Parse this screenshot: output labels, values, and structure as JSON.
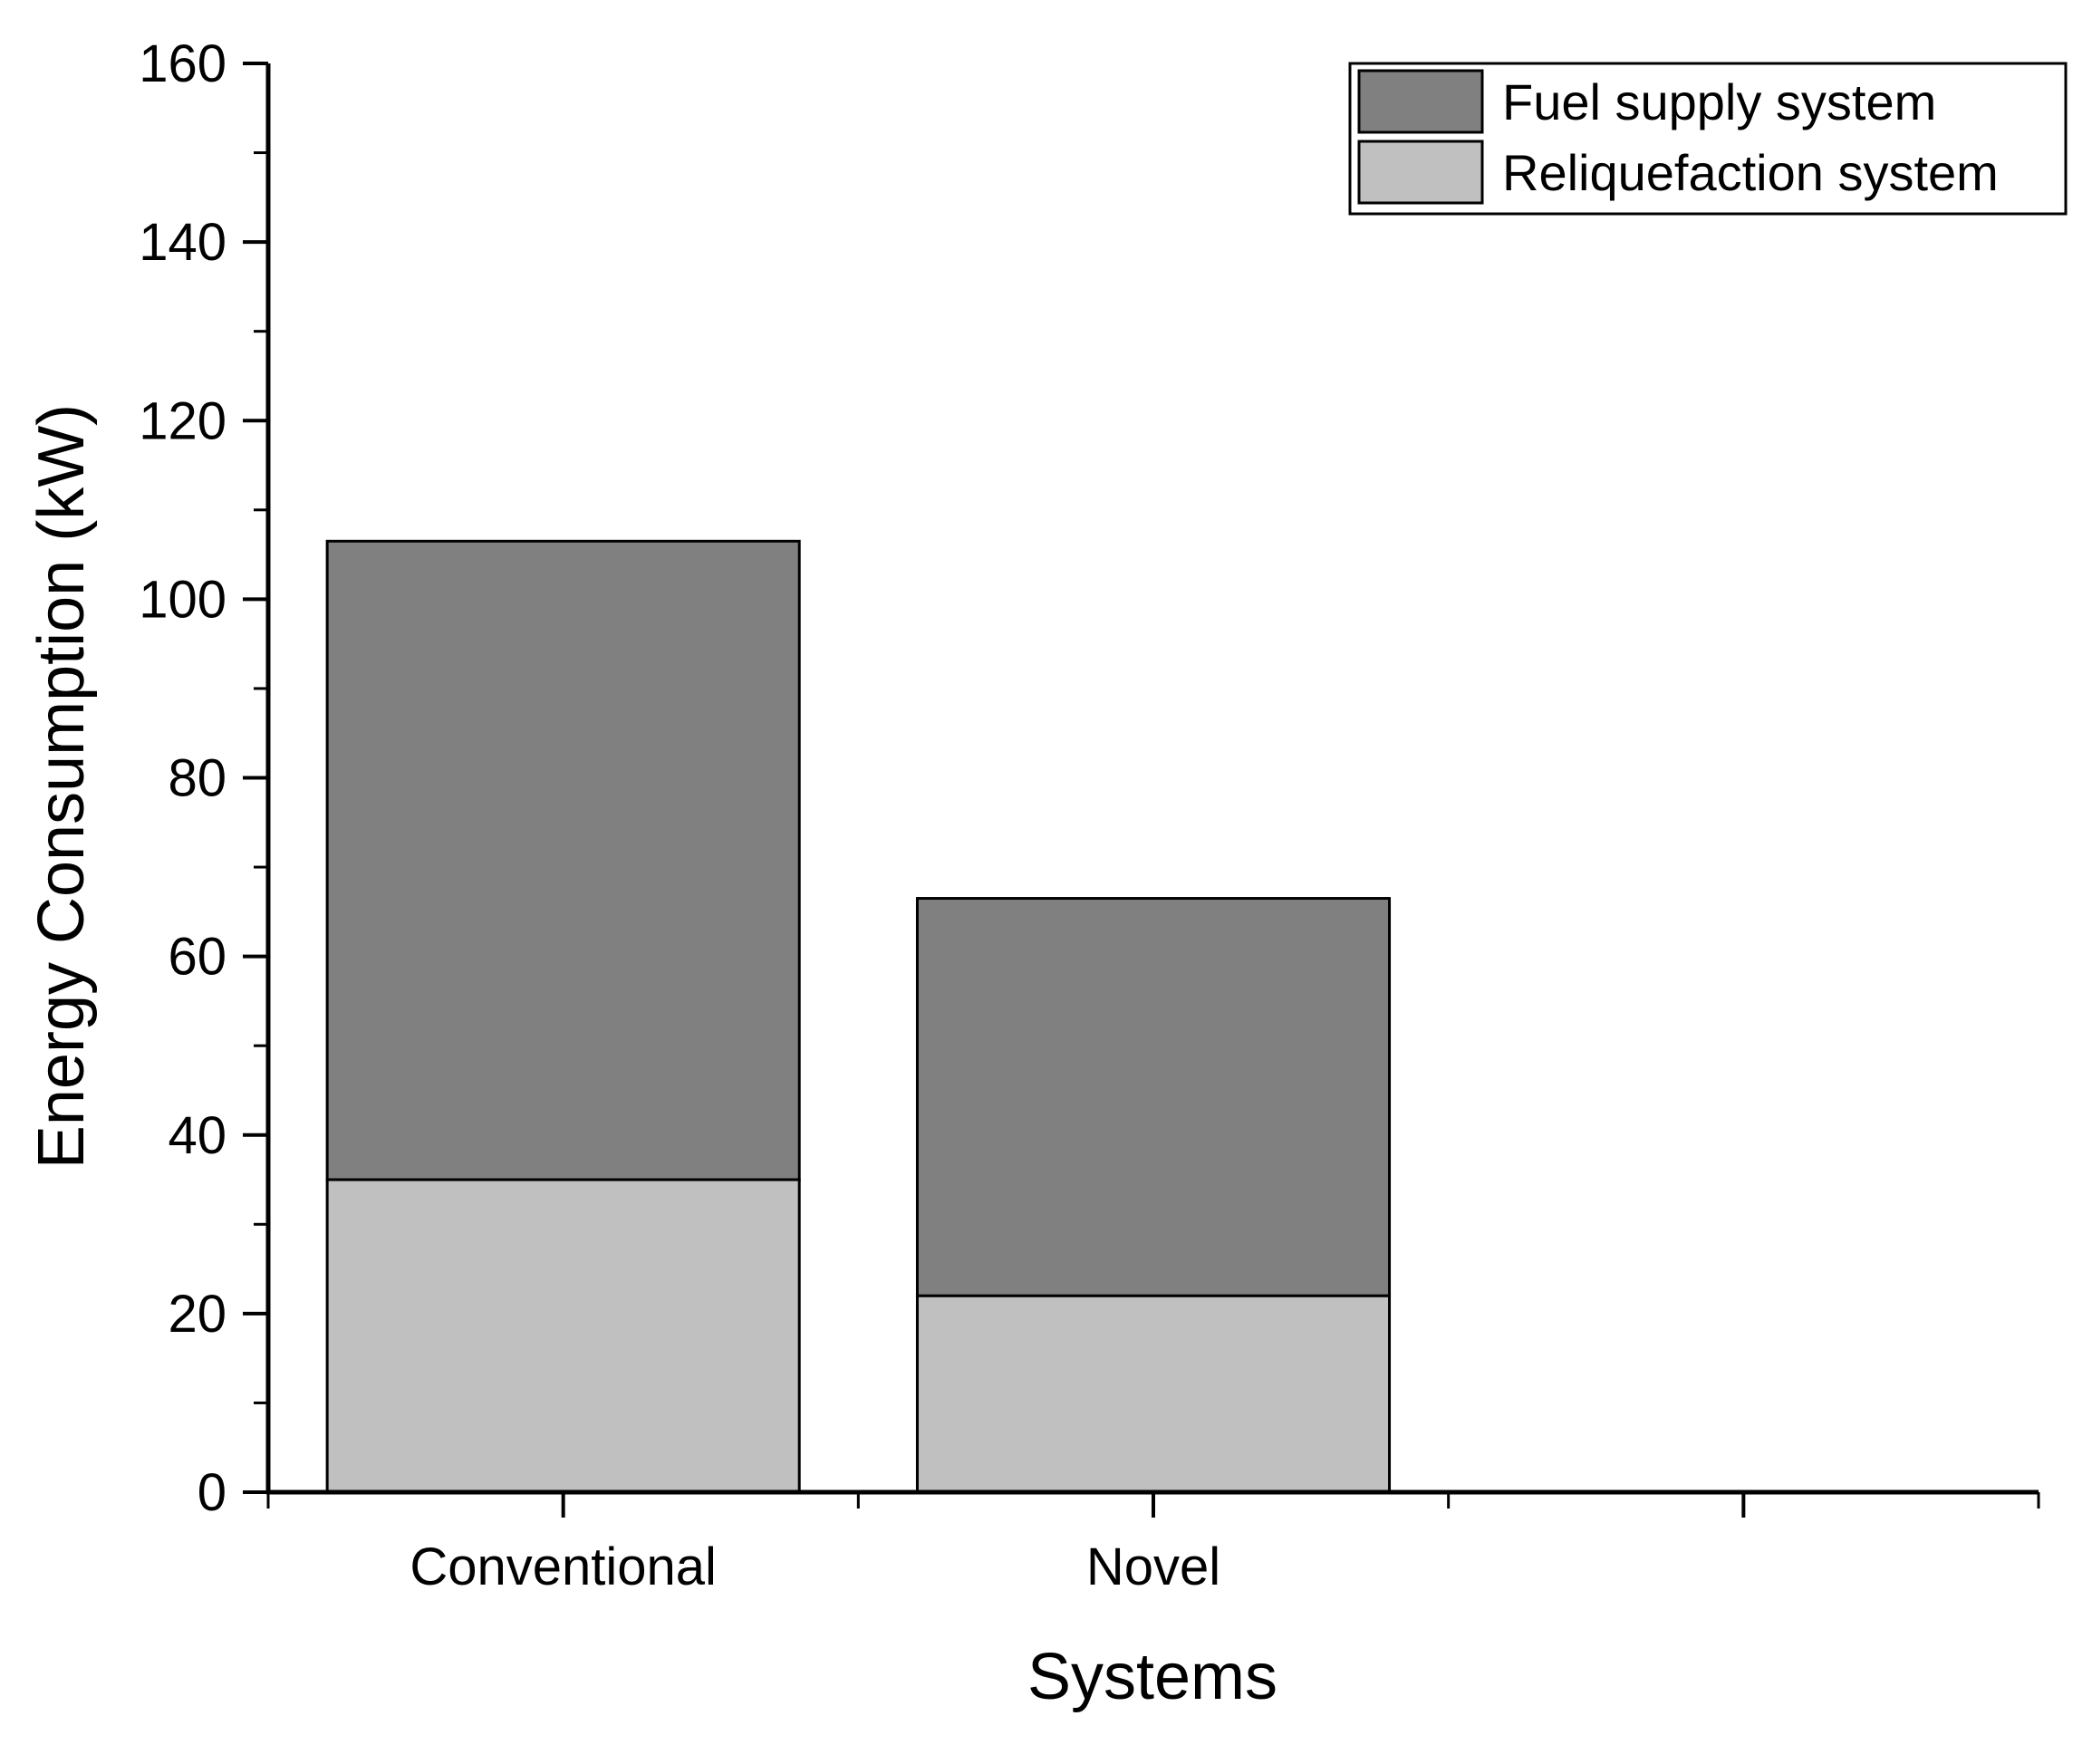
{
  "chart_data": {
    "type": "bar",
    "stacked": true,
    "categories": [
      "Conventional",
      "Novel"
    ],
    "series": [
      {
        "name": "Reliquefaction system",
        "values": [
          35,
          22
        ],
        "color": "#c0c0c0"
      },
      {
        "name": "Fuel supply system",
        "values": [
          71.5,
          44.5
        ],
        "color": "#808080"
      }
    ],
    "totals": [
      106.5,
      66.5
    ],
    "xlabel": "Systems",
    "ylabel": "Energy Consumption (kW)",
    "ylim": [
      0,
      160
    ],
    "yticks": [
      0,
      20,
      40,
      60,
      80,
      100,
      120,
      140,
      160
    ],
    "legend_order": [
      "Fuel supply system",
      "Reliquefaction system"
    ],
    "legend_position": "top-right",
    "grid": false
  }
}
